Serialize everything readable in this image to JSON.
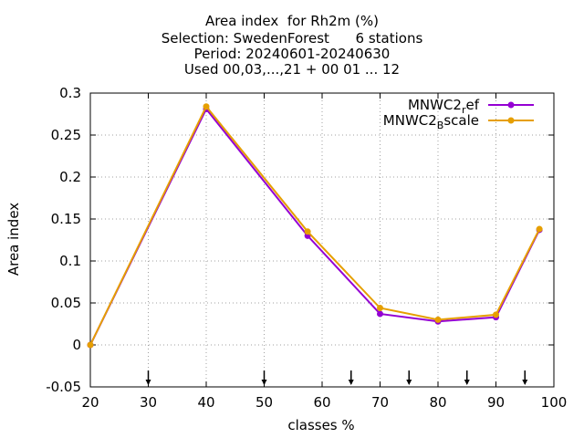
{
  "chart_data": {
    "type": "line",
    "title_lines": [
      "Area index  for Rh2m (%)",
      "Selection: SwedenForest      6 stations",
      "Period: 20240601-20240630",
      "Used 00,03,...,21 + 00 01 ... 12"
    ],
    "xlabel": "classes %",
    "ylabel": "Area index",
    "xlim": [
      20,
      100
    ],
    "ylim": [
      -0.05,
      0.3
    ],
    "xticks": [
      20,
      30,
      40,
      50,
      60,
      70,
      80,
      90,
      100
    ],
    "yticks": [
      -0.05,
      0,
      0.05,
      0.1,
      0.15,
      0.2,
      0.25,
      0.3
    ],
    "ytick_labels": [
      "-0.05",
      "0",
      "0.05",
      "0.1",
      "0.15",
      "0.2",
      "0.25",
      "0.3"
    ],
    "grid": true,
    "legend_position": "top-right",
    "series": [
      {
        "name_base": "MNWC2",
        "name_sub": "r",
        "name_tail": "ef",
        "color": "#9400d3",
        "x": [
          20,
          40,
          57.5,
          70,
          80,
          90,
          97.5
        ],
        "values": [
          0.0,
          0.281,
          0.13,
          0.037,
          0.028,
          0.033,
          0.137
        ]
      },
      {
        "name_base": "MNWC2",
        "name_sub": "B",
        "name_tail": "scale",
        "color": "#e69f00",
        "x": [
          20,
          40,
          57.5,
          70,
          80,
          90,
          97.5
        ],
        "values": [
          0.0,
          0.284,
          0.135,
          0.044,
          0.03,
          0.036,
          0.138
        ]
      }
    ],
    "arrow_markers_x": [
      30,
      50,
      65,
      75,
      85,
      95
    ]
  }
}
